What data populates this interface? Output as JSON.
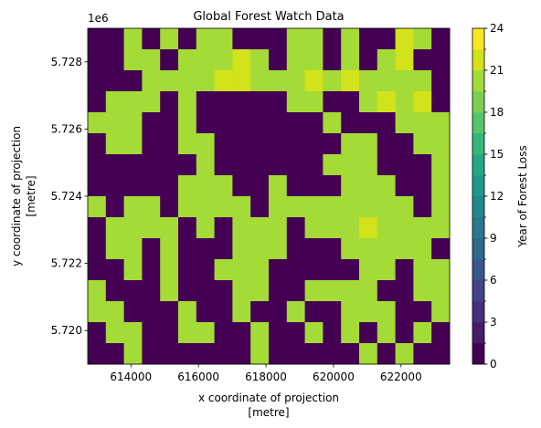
{
  "chart_data": {
    "type": "raster",
    "title": "Global Forest Watch Data",
    "xlabel": [
      "x coordinate of projection",
      "[metre]"
    ],
    "ylabel": [
      "y coordinate of projection",
      "[metre]"
    ],
    "y_offset_label": "1e6",
    "xlim": [
      612720,
      623440
    ],
    "ylim": [
      5.719,
      5.729
    ],
    "xticks": [
      614000,
      616000,
      618000,
      620000,
      622000
    ],
    "yticks": [
      5.72,
      5.722,
      5.724,
      5.726,
      5.728
    ],
    "ytick_labels": [
      "5.720",
      "5.722",
      "5.724",
      "5.726",
      "5.728"
    ],
    "z": [
      [
        0,
        0,
        20,
        0,
        20,
        0,
        20,
        20,
        0,
        0,
        0,
        20,
        20,
        0,
        20,
        0,
        0,
        22,
        20,
        0
      ],
      [
        0,
        0,
        20,
        20,
        0,
        20,
        20,
        20,
        22,
        20,
        0,
        20,
        20,
        0,
        20,
        0,
        20,
        22,
        0,
        0
      ],
      [
        0,
        0,
        0,
        20,
        20,
        20,
        20,
        22,
        22,
        20,
        20,
        20,
        22,
        20,
        22,
        20,
        20,
        20,
        20,
        0
      ],
      [
        0,
        20,
        20,
        20,
        0,
        20,
        0,
        0,
        0,
        0,
        0,
        20,
        20,
        0,
        0,
        20,
        22,
        20,
        22,
        0
      ],
      [
        20,
        20,
        20,
        0,
        0,
        20,
        0,
        0,
        0,
        0,
        0,
        0,
        0,
        20,
        0,
        0,
        0,
        20,
        20,
        20
      ],
      [
        0,
        20,
        20,
        0,
        0,
        20,
        20,
        0,
        0,
        0,
        0,
        0,
        0,
        0,
        20,
        20,
        0,
        0,
        20,
        20
      ],
      [
        0,
        0,
        0,
        0,
        0,
        0,
        20,
        0,
        0,
        0,
        0,
        0,
        0,
        20,
        20,
        20,
        0,
        0,
        0,
        20
      ],
      [
        0,
        0,
        0,
        0,
        0,
        20,
        20,
        20,
        0,
        0,
        20,
        0,
        0,
        0,
        20,
        20,
        20,
        0,
        0,
        20
      ],
      [
        20,
        0,
        20,
        20,
        0,
        20,
        20,
        20,
        20,
        0,
        20,
        20,
        20,
        20,
        20,
        20,
        20,
        20,
        0,
        20
      ],
      [
        0,
        20,
        20,
        20,
        20,
        0,
        20,
        0,
        20,
        20,
        20,
        0,
        20,
        20,
        20,
        22,
        20,
        20,
        20,
        20
      ],
      [
        0,
        20,
        20,
        0,
        20,
        0,
        0,
        0,
        20,
        20,
        20,
        0,
        0,
        0,
        20,
        20,
        20,
        20,
        20,
        0
      ],
      [
        0,
        0,
        20,
        0,
        20,
        0,
        0,
        20,
        20,
        20,
        0,
        0,
        0,
        0,
        0,
        20,
        20,
        0,
        20,
        20
      ],
      [
        20,
        0,
        0,
        0,
        20,
        0,
        0,
        0,
        20,
        20,
        0,
        0,
        20,
        20,
        20,
        20,
        0,
        0,
        20,
        20
      ],
      [
        20,
        20,
        0,
        0,
        0,
        20,
        0,
        0,
        20,
        0,
        0,
        20,
        0,
        0,
        20,
        20,
        20,
        0,
        0,
        20
      ],
      [
        0,
        20,
        20,
        0,
        0,
        20,
        20,
        0,
        0,
        20,
        0,
        0,
        20,
        0,
        20,
        0,
        20,
        0,
        20,
        0
      ],
      [
        0,
        0,
        20,
        0,
        0,
        0,
        0,
        0,
        0,
        20,
        0,
        0,
        0,
        0,
        0,
        20,
        0,
        20,
        0,
        0
      ]
    ],
    "colorbar": {
      "label": "Year of Forest Loss",
      "levels": [
        0,
        1.5,
        3,
        4.5,
        6,
        7.5,
        9,
        10.5,
        12,
        13.5,
        15,
        16.5,
        18,
        19.5,
        21,
        22.5,
        24
      ],
      "ticks": [
        0,
        3,
        6,
        9,
        12,
        15,
        18,
        21,
        24
      ],
      "colors": [
        "#440154",
        "#481a6c",
        "#472f7d",
        "#414487",
        "#39568c",
        "#31688e",
        "#2a788e",
        "#23888e",
        "#1f988b",
        "#22a884",
        "#35b779",
        "#54c568",
        "#7ad151",
        "#a5db36",
        "#d2e21b",
        "#fde725"
      ]
    }
  }
}
